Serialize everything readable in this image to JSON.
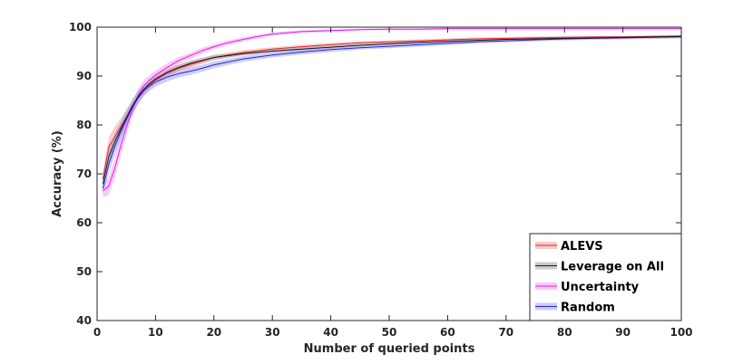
{
  "chart_data": {
    "type": "line",
    "xlabel": "Number of queried points",
    "ylabel": "Accuracy (%)",
    "xlim": [
      0,
      100
    ],
    "ylim": [
      40,
      100
    ],
    "xticks": [
      "0",
      "10",
      "20",
      "30",
      "40",
      "50",
      "60",
      "70",
      "80",
      "90",
      "100"
    ],
    "yticks": [
      "40",
      "50",
      "60",
      "70",
      "80",
      "90",
      "100"
    ],
    "grid": false,
    "legend_position": "bottom-right",
    "series": [
      {
        "name": "ALEVS",
        "color": "#e8202a",
        "band": "#f4a6a6",
        "x": [
          1,
          2,
          3,
          4,
          5,
          6,
          7,
          8,
          9,
          10,
          12,
          14,
          16,
          18,
          20,
          25,
          30,
          35,
          40,
          45,
          50,
          55,
          60,
          65,
          70,
          75,
          80,
          85,
          90,
          95,
          100
        ],
        "y": [
          69,
          75.5,
          77.5,
          79.5,
          81.5,
          83.5,
          85.5,
          87,
          88.2,
          89.2,
          90.6,
          91.6,
          92.4,
          93.1,
          93.8,
          94.8,
          95.5,
          96.0,
          96.4,
          96.8,
          97.0,
          97.2,
          97.4,
          97.6,
          97.7,
          97.8,
          97.9,
          98.0,
          98.0,
          98.1,
          98.2
        ],
        "spread": [
          1.2,
          2.0,
          2.0,
          1.8,
          1.6,
          1.4,
          1.3,
          1.1,
          1.0,
          0.9,
          0.8,
          0.7,
          0.6,
          0.6,
          0.5,
          0.5,
          0.4,
          0.4,
          0.4,
          0.3,
          0.3,
          0.3,
          0.3,
          0.3,
          0.3,
          0.3,
          0.3,
          0.2,
          0.2,
          0.2,
          0.2
        ]
      },
      {
        "name": "Leverage on All",
        "color": "#1a1a1a",
        "band": "#a8a8a8",
        "x": [
          1,
          2,
          3,
          4,
          5,
          6,
          7,
          8,
          9,
          10,
          12,
          14,
          16,
          18,
          20,
          25,
          30,
          35,
          40,
          45,
          50,
          55,
          60,
          65,
          70,
          75,
          80,
          85,
          90,
          95,
          100
        ],
        "y": [
          68,
          73.5,
          76.5,
          79,
          81.5,
          83.8,
          85.8,
          87.3,
          88.5,
          89.4,
          90.8,
          91.8,
          92.6,
          93.2,
          93.8,
          94.6,
          95.1,
          95.5,
          95.9,
          96.3,
          96.6,
          96.9,
          97.1,
          97.3,
          97.5,
          97.6,
          97.7,
          97.8,
          97.9,
          98.0,
          98.1
        ],
        "spread": [
          1.0,
          1.6,
          1.6,
          1.5,
          1.4,
          1.3,
          1.2,
          1.0,
          0.9,
          0.8,
          0.7,
          0.6,
          0.6,
          0.5,
          0.5,
          0.4,
          0.4,
          0.4,
          0.3,
          0.3,
          0.3,
          0.3,
          0.3,
          0.3,
          0.2,
          0.2,
          0.2,
          0.2,
          0.2,
          0.2,
          0.2
        ]
      },
      {
        "name": "Uncertainty",
        "color": "#e61fe6",
        "band": "#f3a3f3",
        "x": [
          1,
          2,
          3,
          4,
          5,
          6,
          7,
          8,
          9,
          10,
          12,
          14,
          16,
          18,
          20,
          22,
          25,
          28,
          30,
          35,
          40,
          45,
          50,
          55,
          60,
          65,
          70,
          75,
          80,
          85,
          90,
          95,
          100
        ],
        "y": [
          66.5,
          67.5,
          71,
          75.5,
          79.5,
          83,
          86,
          88,
          89.2,
          90.2,
          91.8,
          93.2,
          94.2,
          95.2,
          96.0,
          96.7,
          97.5,
          98.2,
          98.6,
          99.1,
          99.3,
          99.5,
          99.6,
          99.6,
          99.7,
          99.7,
          99.7,
          99.7,
          99.7,
          99.7,
          99.7,
          99.7,
          99.7
        ],
        "spread": [
          1.3,
          1.8,
          2.0,
          2.0,
          1.8,
          1.6,
          1.4,
          1.2,
          1.0,
          0.9,
          0.8,
          0.7,
          0.6,
          0.6,
          0.5,
          0.5,
          0.4,
          0.4,
          0.3,
          0.3,
          0.3,
          0.2,
          0.2,
          0.2,
          0.2,
          0.2,
          0.2,
          0.2,
          0.2,
          0.2,
          0.2,
          0.2,
          0.2
        ]
      },
      {
        "name": "Random",
        "color": "#2424e6",
        "band": "#a8a8f4",
        "x": [
          1,
          2,
          3,
          4,
          5,
          6,
          7,
          8,
          9,
          10,
          12,
          14,
          16,
          18,
          20,
          25,
          30,
          35,
          40,
          45,
          50,
          55,
          60,
          65,
          70,
          75,
          80,
          85,
          90,
          95,
          100
        ],
        "y": [
          67,
          72,
          75.5,
          78.5,
          81,
          83.5,
          85.5,
          87,
          88,
          88.8,
          89.8,
          90.5,
          91.0,
          91.6,
          92.3,
          93.5,
          94.3,
          94.9,
          95.4,
          95.8,
          96.1,
          96.4,
          96.7,
          97.0,
          97.2,
          97.4,
          97.6,
          97.7,
          97.8,
          97.9,
          98.0
        ],
        "spread": [
          1.2,
          1.8,
          1.8,
          1.7,
          1.5,
          1.4,
          1.3,
          1.1,
          1.0,
          1.0,
          0.9,
          0.8,
          0.8,
          0.7,
          0.7,
          0.6,
          0.5,
          0.5,
          0.5,
          0.4,
          0.4,
          0.4,
          0.4,
          0.3,
          0.3,
          0.3,
          0.3,
          0.3,
          0.3,
          0.3,
          0.3
        ]
      }
    ]
  }
}
